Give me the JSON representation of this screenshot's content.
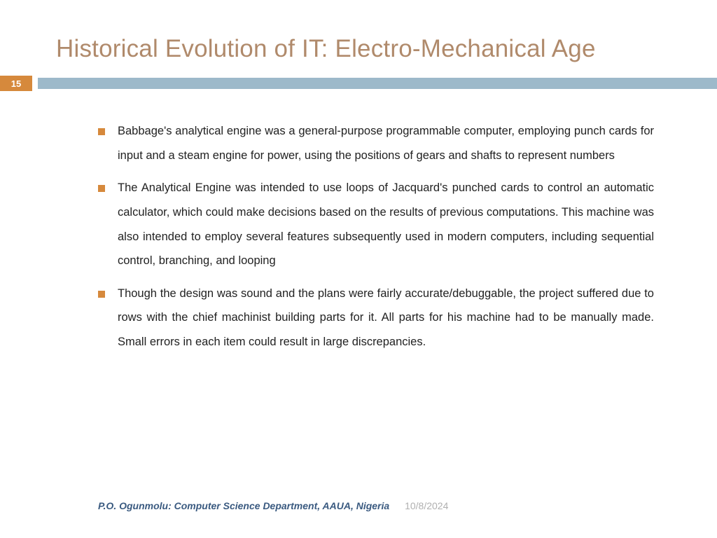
{
  "slide": {
    "title": "Historical Evolution of IT: Electro-Mechanical Age",
    "page_number": "15",
    "title_color": "#b08a6b",
    "badge_bg": "#d6893c",
    "stripe_bg": "#9db9ca",
    "bullet_color": "#d6893c",
    "bullets": [
      "Babbage's analytical engine was a general-purpose programmable computer, employing punch cards for input and a steam engine for power, using the positions of gears and shafts to represent numbers",
      "The Analytical Engine was intended to use loops of Jacquard's punched cards to control an automatic calculator, which could make decisions based on the results of previous computations. This machine was also intended to employ several features subsequently used in modern computers, including sequential control, branching, and looping",
      "Though the design was sound and the plans were fairly accurate/debuggable, the project suffered due to rows with the chief machinist building parts for it. All parts for his machine had to be manually made. Small errors in each item could result in large discrepancies."
    ]
  },
  "footer": {
    "author": "P.O. Ogunmolu: Computer Science Department, AAUA, Nigeria",
    "date": "10/8/2024",
    "author_color": "#3a5a80",
    "date_color": "#b0b0b0"
  }
}
